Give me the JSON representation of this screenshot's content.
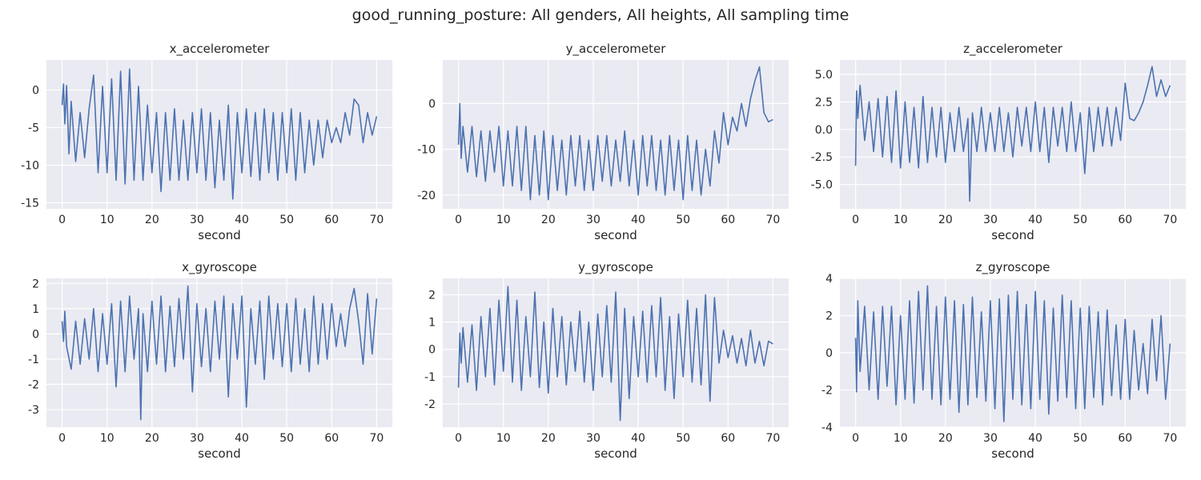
{
  "figure": {
    "title": "good_running_posture: All genders, All heights, All sampling time"
  },
  "chart_data": [
    {
      "type": "line",
      "title": "x_accelerometer",
      "xlabel": "second",
      "ylabel": "",
      "xlim": [
        -3.5,
        73.5
      ],
      "ylim": [
        -15.8,
        4.0
      ],
      "xticks": [
        0,
        10,
        20,
        30,
        40,
        50,
        60,
        70
      ],
      "yticks": [
        -15,
        -10,
        -5,
        0
      ],
      "series": [
        {
          "color": "#4c72b0",
          "x": [
            0,
            0.3,
            0.6,
            1,
            1.5,
            2,
            3,
            4,
            5,
            6,
            7,
            8,
            9,
            10,
            11,
            12,
            13,
            14,
            15,
            16,
            17,
            18,
            19,
            20,
            21,
            22,
            23,
            24,
            25,
            26,
            27,
            28,
            29,
            30,
            31,
            32,
            33,
            34,
            35,
            36,
            37,
            38,
            39,
            40,
            41,
            42,
            43,
            44,
            45,
            46,
            47,
            48,
            49,
            50,
            51,
            52,
            53,
            54,
            55,
            56,
            57,
            58,
            59,
            60,
            61,
            62,
            63,
            64,
            65,
            66,
            67,
            68,
            69,
            70
          ],
          "y": [
            -2,
            0.8,
            -4.5,
            0.6,
            -8.5,
            -1.5,
            -9.5,
            -3,
            -9,
            -2.5,
            2,
            -11,
            0.5,
            -11,
            1.5,
            -12,
            2.5,
            -12.5,
            2.8,
            -12,
            0.5,
            -12,
            -2,
            -11,
            -3,
            -13.5,
            -3,
            -12,
            -2.5,
            -12,
            -4,
            -12,
            -3,
            -11,
            -2.5,
            -12,
            -3,
            -13,
            -4,
            -12,
            -2,
            -14.5,
            -3,
            -11,
            -2.5,
            -11.5,
            -3,
            -12,
            -2.5,
            -11,
            -3,
            -12,
            -3,
            -11,
            -2.5,
            -12,
            -3,
            -11,
            -4,
            -10,
            -4,
            -9,
            -4,
            -7,
            -5,
            -7,
            -3,
            -6,
            -1.2,
            -2,
            -7,
            -3,
            -6,
            -3.5
          ]
        }
      ]
    },
    {
      "type": "line",
      "title": "y_accelerometer",
      "xlabel": "second",
      "ylabel": "",
      "xlim": [
        -3.5,
        73.5
      ],
      "ylim": [
        -23.0,
        9.5
      ],
      "xticks": [
        0,
        10,
        20,
        30,
        40,
        50,
        60,
        70
      ],
      "yticks": [
        -20,
        -10,
        0
      ],
      "series": [
        {
          "color": "#4c72b0",
          "x": [
            0,
            0.3,
            0.6,
            1,
            2,
            3,
            4,
            5,
            6,
            7,
            8,
            9,
            10,
            11,
            12,
            13,
            14,
            15,
            16,
            17,
            18,
            19,
            20,
            21,
            22,
            23,
            24,
            25,
            26,
            27,
            28,
            29,
            30,
            31,
            32,
            33,
            34,
            35,
            36,
            37,
            38,
            39,
            40,
            41,
            42,
            43,
            44,
            45,
            46,
            47,
            48,
            49,
            50,
            51,
            52,
            53,
            54,
            55,
            56,
            57,
            58,
            59,
            60,
            61,
            62,
            63,
            64,
            65,
            66,
            67,
            68,
            69,
            70
          ],
          "y": [
            -9,
            0,
            -12,
            -5,
            -15,
            -5,
            -16,
            -6,
            -17,
            -6,
            -15,
            -5,
            -18,
            -6,
            -18,
            -5,
            -19,
            -5,
            -21,
            -7,
            -20,
            -6,
            -21,
            -7,
            -19,
            -8,
            -20,
            -7,
            -18,
            -7,
            -19,
            -8,
            -19,
            -7,
            -17,
            -7,
            -18,
            -8,
            -17,
            -6,
            -18,
            -8,
            -20,
            -7,
            -18,
            -7,
            -19,
            -8,
            -20,
            -7,
            -19,
            -8,
            -21,
            -7,
            -19,
            -8,
            -20,
            -10,
            -18,
            -6,
            -13,
            -2,
            -9,
            -3,
            -6,
            0,
            -5,
            1,
            5,
            8,
            -2,
            -4,
            -3.5
          ]
        }
      ]
    },
    {
      "type": "line",
      "title": "z_accelerometer",
      "xlabel": "second",
      "ylabel": "",
      "xlim": [
        -3.5,
        73.5
      ],
      "ylim": [
        -7.2,
        6.3
      ],
      "xticks": [
        0,
        10,
        20,
        30,
        40,
        50,
        60,
        70
      ],
      "yticks": [
        -5.0,
        -2.5,
        0.0,
        2.5,
        5.0
      ],
      "series": [
        {
          "color": "#4c72b0",
          "x": [
            0,
            0.2,
            0.5,
            1,
            2,
            3,
            4,
            5,
            6,
            7,
            8,
            9,
            10,
            11,
            12,
            13,
            14,
            15,
            16,
            17,
            18,
            19,
            20,
            21,
            22,
            23,
            24,
            25,
            25.4,
            26,
            27,
            28,
            29,
            30,
            31,
            32,
            33,
            34,
            35,
            36,
            37,
            38,
            39,
            40,
            41,
            42,
            43,
            44,
            45,
            46,
            47,
            48,
            49,
            50,
            51,
            52,
            53,
            54,
            55,
            56,
            57,
            58,
            59,
            60,
            61,
            62,
            63,
            64,
            65,
            66,
            67,
            68,
            69,
            70
          ],
          "y": [
            -3.3,
            3.5,
            1,
            4,
            -1,
            2.5,
            -2,
            2.8,
            -2.5,
            3,
            -3,
            3.5,
            -3.5,
            2.5,
            -3,
            2,
            -3.5,
            3,
            -3,
            2,
            -2.5,
            2,
            -3,
            1.5,
            -2,
            2,
            -2,
            1,
            -6.5,
            1.5,
            -2,
            2,
            -2,
            1.5,
            -2,
            2,
            -2,
            1.5,
            -2.5,
            2,
            -1.5,
            2,
            -2,
            2.5,
            -2,
            2,
            -3,
            2,
            -1.5,
            2,
            -2,
            2.5,
            -2,
            1.5,
            -4,
            2,
            -2,
            2,
            -1.5,
            2,
            -1.5,
            2,
            -1,
            4.2,
            1,
            0.8,
            1.5,
            2.5,
            4,
            5.7,
            3,
            4.5,
            3,
            4
          ]
        }
      ]
    },
    {
      "type": "line",
      "title": "x_gyroscope",
      "xlabel": "second",
      "ylabel": "",
      "xlim": [
        -3.5,
        73.5
      ],
      "ylim": [
        -3.7,
        2.2
      ],
      "xticks": [
        0,
        10,
        20,
        30,
        40,
        50,
        60,
        70
      ],
      "yticks": [
        -3,
        -2,
        -1,
        0,
        1,
        2
      ],
      "series": [
        {
          "color": "#4c72b0",
          "x": [
            0,
            0.3,
            0.6,
            1,
            2,
            3,
            4,
            5,
            6,
            7,
            8,
            9,
            10,
            11,
            12,
            13,
            14,
            15,
            16,
            17,
            17.5,
            18,
            19,
            20,
            21,
            22,
            23,
            24,
            25,
            26,
            27,
            28,
            29,
            30,
            31,
            32,
            33,
            34,
            35,
            36,
            37,
            38,
            39,
            40,
            41,
            42,
            43,
            44,
            45,
            46,
            47,
            48,
            49,
            50,
            51,
            52,
            53,
            54,
            55,
            56,
            57,
            58,
            59,
            60,
            61,
            62,
            63,
            64,
            65,
            66,
            67,
            68,
            69,
            70
          ],
          "y": [
            0.5,
            -0.3,
            0.9,
            -0.5,
            -1.4,
            0.5,
            -1.2,
            0.6,
            -1,
            1,
            -1.5,
            0.8,
            -1.2,
            1.2,
            -2.1,
            1.3,
            -1.5,
            1.5,
            -1,
            1,
            -3.4,
            0.8,
            -1.5,
            1.3,
            -1.2,
            1.5,
            -1.5,
            1.1,
            -1.3,
            1.4,
            -1,
            1.9,
            -2.3,
            1.2,
            -1.3,
            1,
            -1.5,
            1.3,
            -1,
            1.5,
            -2.5,
            1.2,
            -1,
            1.5,
            -2.9,
            1,
            -1.2,
            1.3,
            -1.8,
            1.5,
            -1,
            1.2,
            -1.3,
            1.2,
            -1.5,
            1.4,
            -1.2,
            1,
            -1.5,
            1.5,
            -1.2,
            1.2,
            -1,
            1.2,
            -0.5,
            0.8,
            -0.5,
            1,
            1.8,
            0.5,
            -1.2,
            1.6,
            -0.8,
            1.4
          ]
        }
      ]
    },
    {
      "type": "line",
      "title": "y_gyroscope",
      "xlabel": "second",
      "ylabel": "",
      "xlim": [
        -3.5,
        73.5
      ],
      "ylim": [
        -2.85,
        2.6
      ],
      "xticks": [
        0,
        10,
        20,
        30,
        40,
        50,
        60,
        70
      ],
      "yticks": [
        -2,
        -1,
        0,
        1,
        2
      ],
      "series": [
        {
          "color": "#4c72b0",
          "x": [
            0,
            0.3,
            0.6,
            1,
            2,
            3,
            4,
            5,
            6,
            7,
            8,
            9,
            10,
            11,
            12,
            13,
            14,
            15,
            16,
            17,
            18,
            19,
            20,
            21,
            22,
            23,
            24,
            25,
            26,
            27,
            28,
            29,
            30,
            31,
            32,
            33,
            34,
            35,
            36,
            37,
            38,
            39,
            40,
            41,
            42,
            43,
            44,
            45,
            46,
            47,
            48,
            49,
            50,
            51,
            52,
            53,
            54,
            55,
            56,
            57,
            58,
            59,
            60,
            61,
            62,
            63,
            64,
            65,
            66,
            67,
            68,
            69,
            70
          ],
          "y": [
            -1.4,
            0.6,
            -0.5,
            0.8,
            -1.2,
            0.9,
            -1.5,
            1.2,
            -1,
            1.5,
            -1.3,
            1.8,
            -0.8,
            2.3,
            -1.2,
            1.8,
            -1.5,
            1.2,
            -1,
            2.1,
            -1.4,
            1,
            -1.6,
            1.5,
            -1,
            1.2,
            -1.3,
            1,
            -0.8,
            1.4,
            -1.2,
            1,
            -1.5,
            1.3,
            -1,
            1.6,
            -1.2,
            2.1,
            -2.6,
            1.5,
            -1.8,
            1.2,
            -1,
            1.4,
            -1.2,
            1.6,
            -1,
            1.9,
            -1.5,
            1.2,
            -1.8,
            1.3,
            -1,
            1.8,
            -1.2,
            1.5,
            -1.3,
            2.0,
            -1.9,
            1.9,
            -0.5,
            0.7,
            -0.3,
            0.5,
            -0.5,
            0.4,
            -0.6,
            0.7,
            -0.5,
            0.3,
            -0.6,
            0.3,
            0.2
          ]
        }
      ]
    },
    {
      "type": "line",
      "title": "z_gyroscope",
      "xlabel": "second",
      "ylabel": "",
      "xlim": [
        -3.5,
        73.5
      ],
      "ylim": [
        -4.0,
        4.0
      ],
      "xticks": [
        0,
        10,
        20,
        30,
        40,
        50,
        60,
        70
      ],
      "yticks": [
        -4,
        -2,
        0,
        2,
        4
      ],
      "series": [
        {
          "color": "#4c72b0",
          "x": [
            0,
            0.2,
            0.5,
            1,
            2,
            3,
            4,
            5,
            6,
            7,
            8,
            9,
            10,
            11,
            12,
            13,
            14,
            15,
            16,
            17,
            18,
            19,
            20,
            21,
            22,
            23,
            24,
            25,
            26,
            27,
            28,
            29,
            30,
            31,
            32,
            33,
            34,
            35,
            36,
            37,
            38,
            39,
            40,
            41,
            42,
            43,
            44,
            45,
            46,
            47,
            48,
            49,
            50,
            51,
            52,
            53,
            54,
            55,
            56,
            57,
            58,
            59,
            60,
            61,
            62,
            63,
            64,
            65,
            66,
            67,
            68,
            69,
            70
          ],
          "y": [
            0.8,
            -2.1,
            2.8,
            -1,
            2.5,
            -2,
            2.2,
            -2.5,
            2.5,
            -1.8,
            2.5,
            -2.8,
            2,
            -2.5,
            2.8,
            -2.7,
            3.3,
            -2,
            3.6,
            -2.5,
            2.5,
            -2.8,
            3,
            -2.5,
            2.8,
            -3.2,
            2.6,
            -2.8,
            3,
            -2.4,
            2.2,
            -2.6,
            2.8,
            -3,
            2.9,
            -3.7,
            3.1,
            -2.5,
            3.3,
            -2.8,
            2.6,
            -3,
            3.3,
            -2.5,
            2.8,
            -3.3,
            2.4,
            -2.6,
            3.1,
            -2.4,
            2.8,
            -3,
            2.4,
            -3,
            2.5,
            -2.4,
            2.2,
            -2.8,
            2.3,
            -2.3,
            1.5,
            -2.5,
            1.8,
            -2.5,
            1.2,
            -2,
            0.5,
            -2.2,
            1.8,
            -1.5,
            2,
            -2.5,
            0.5
          ]
        }
      ]
    }
  ]
}
